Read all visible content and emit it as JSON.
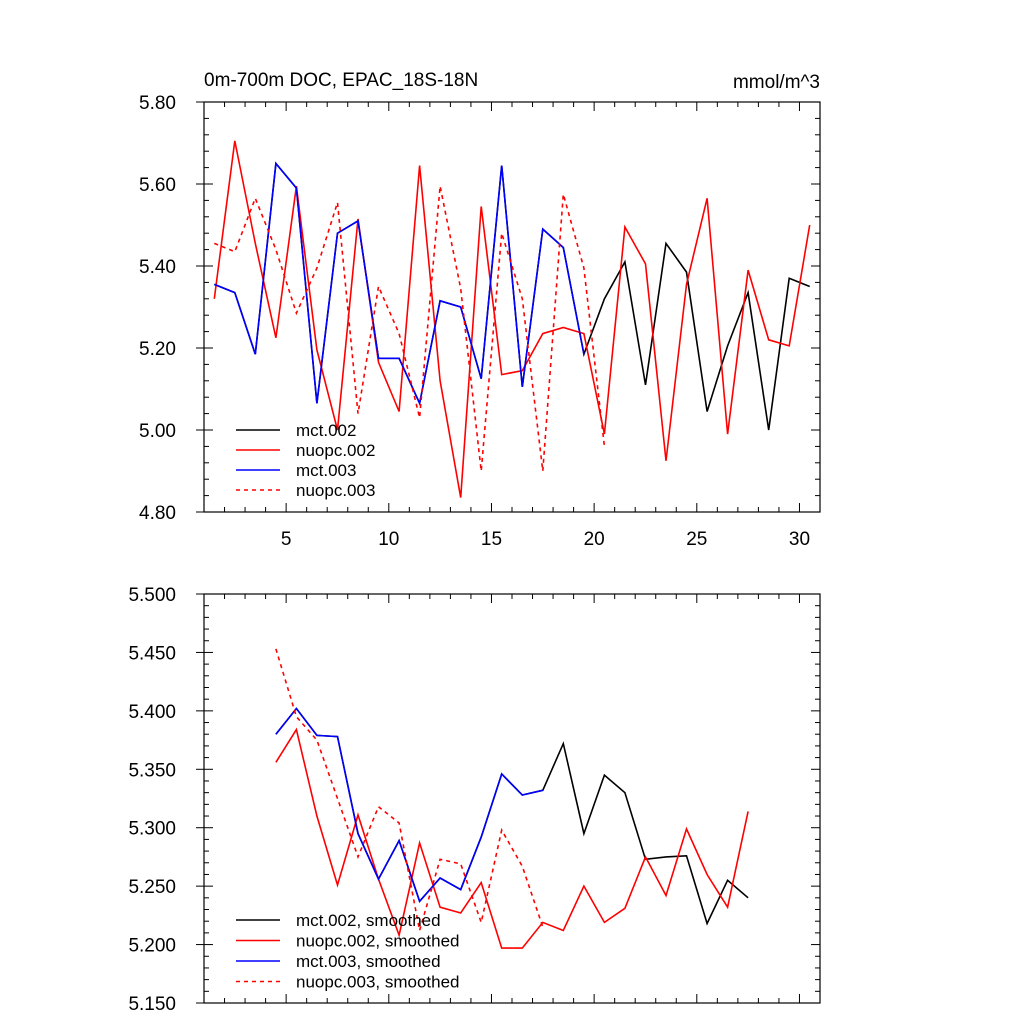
{
  "figure": {
    "title_left": "0m-700m DOC, EPAC_18S-18N",
    "title_right": "mmol/m^3"
  },
  "chart_data": [
    {
      "type": "line",
      "panel": "top",
      "xlim": [
        1,
        31
      ],
      "ylim": [
        4.8,
        5.8
      ],
      "xticks": [
        5,
        10,
        15,
        20,
        25,
        30
      ],
      "xtick_labels": [
        "5",
        "10",
        "15",
        "20",
        "25",
        "30"
      ],
      "yticks": [
        4.8,
        5.0,
        5.2,
        5.4,
        5.6,
        5.8
      ],
      "ytick_labels": [
        "4.80",
        "5.00",
        "5.20",
        "5.40",
        "5.60",
        "5.80"
      ],
      "legend_position": "lower-left",
      "grid": false,
      "series": [
        {
          "name": "mct.002",
          "color": "#000000",
          "dash": "solid",
          "x": [
            1.5,
            2.5,
            3.5,
            4.5,
            5.5,
            6.5,
            7.5,
            8.5,
            9.5,
            10.5,
            11.5,
            12.5,
            13.5,
            14.5,
            15.5,
            16.5,
            17.5,
            18.5,
            19.5,
            20.5,
            21.5,
            22.5,
            23.5,
            24.5,
            25.5,
            26.5,
            27.5,
            28.5,
            29.5,
            30.5
          ],
          "values": [
            5.355,
            5.335,
            5.185,
            5.65,
            5.59,
            5.065,
            5.48,
            5.51,
            5.175,
            5.175,
            5.065,
            5.315,
            5.3,
            5.125,
            5.645,
            5.105,
            5.49,
            5.445,
            5.185,
            5.32,
            5.41,
            5.11,
            5.455,
            5.385,
            5.045,
            5.205,
            5.335,
            5.0,
            5.37,
            5.35
          ]
        },
        {
          "name": "nuopc.002",
          "color": "#ff0000",
          "dash": "solid",
          "x": [
            1.5,
            2.5,
            3.5,
            4.5,
            5.5,
            6.5,
            7.5,
            8.5,
            9.5,
            10.5,
            11.5,
            12.5,
            13.5,
            14.5,
            15.5,
            16.5,
            17.5,
            18.5,
            19.5,
            20.5,
            21.5,
            22.5,
            23.5,
            24.5,
            25.5,
            26.5,
            27.5,
            28.5,
            29.5,
            30.5
          ],
          "values": [
            5.32,
            5.705,
            5.455,
            5.225,
            5.595,
            5.195,
            5.0,
            5.515,
            5.165,
            5.045,
            5.645,
            5.12,
            4.835,
            5.545,
            5.135,
            5.145,
            5.235,
            5.25,
            5.235,
            4.99,
            5.495,
            5.405,
            4.925,
            5.355,
            5.565,
            4.99,
            5.39,
            5.22,
            5.205,
            5.5
          ]
        },
        {
          "name": "mct.003",
          "color": "#0000ff",
          "dash": "solid",
          "x": [
            1.5,
            2.5,
            3.5,
            4.5,
            5.5,
            6.5,
            7.5,
            8.5,
            9.5,
            10.5,
            11.5,
            12.5,
            13.5,
            14.5,
            15.5,
            16.5,
            17.5,
            18.5,
            19.5
          ],
          "values": [
            5.355,
            5.335,
            5.185,
            5.65,
            5.59,
            5.065,
            5.48,
            5.51,
            5.175,
            5.175,
            5.065,
            5.315,
            5.3,
            5.125,
            5.645,
            5.105,
            5.49,
            5.445,
            5.185
          ]
        },
        {
          "name": "nuopc.003",
          "color": "#ff0000",
          "dash": "dashed",
          "x": [
            1.5,
            2.5,
            3.5,
            4.5,
            5.5,
            6.5,
            7.5,
            8.5,
            9.5,
            10.5,
            11.5,
            12.5,
            13.5,
            14.5,
            15.5,
            16.5,
            17.5,
            18.5,
            19.5,
            20.5
          ],
          "values": [
            5.455,
            5.435,
            5.565,
            5.44,
            5.285,
            5.395,
            5.555,
            5.04,
            5.35,
            5.235,
            5.03,
            5.595,
            5.345,
            4.9,
            5.48,
            5.32,
            4.9,
            5.575,
            5.395,
            4.96
          ]
        }
      ]
    },
    {
      "type": "line",
      "panel": "bottom",
      "xlim": [
        1,
        31
      ],
      "ylim": [
        5.15,
        5.5
      ],
      "xticks": [
        5,
        10,
        15,
        20,
        25,
        30
      ],
      "xtick_labels": [
        "",
        "",
        "",
        "",
        "",
        ""
      ],
      "yticks": [
        5.15,
        5.2,
        5.25,
        5.3,
        5.35,
        5.4,
        5.45,
        5.5
      ],
      "ytick_labels": [
        "5.150",
        "5.200",
        "5.250",
        "5.300",
        "5.350",
        "5.400",
        "5.450",
        "5.500"
      ],
      "legend_position": "lower-left",
      "grid": false,
      "series": [
        {
          "name": "mct.002, smoothed",
          "color": "#000000",
          "dash": "solid",
          "x": [
            4.5,
            5.5,
            6.5,
            7.5,
            8.5,
            9.5,
            10.5,
            11.5,
            12.5,
            13.5,
            14.5,
            15.5,
            16.5,
            17.5,
            18.5,
            19.5,
            20.5,
            21.5,
            22.5,
            23.5,
            24.5,
            25.5,
            26.5,
            27.5
          ],
          "values": [
            5.38,
            5.402,
            5.379,
            5.378,
            5.295,
            5.256,
            5.289,
            5.237,
            5.257,
            5.247,
            5.292,
            5.346,
            5.328,
            5.332,
            5.372,
            5.295,
            5.345,
            5.33,
            5.273,
            5.275,
            5.276,
            5.218,
            5.255,
            5.24
          ]
        },
        {
          "name": "nuopc.002, smoothed",
          "color": "#ff0000",
          "dash": "solid",
          "x": [
            4.5,
            5.5,
            6.5,
            7.5,
            8.5,
            9.5,
            10.5,
            11.5,
            12.5,
            13.5,
            14.5,
            15.5,
            16.5,
            17.5,
            18.5,
            19.5,
            20.5,
            21.5,
            22.5,
            23.5,
            24.5,
            25.5,
            26.5,
            27.5
          ],
          "values": [
            5.356,
            5.384,
            5.31,
            5.251,
            5.311,
            5.256,
            5.208,
            5.287,
            5.232,
            5.227,
            5.253,
            5.197,
            5.197,
            5.219,
            5.212,
            5.25,
            5.219,
            5.231,
            5.275,
            5.242,
            5.299,
            5.26,
            5.232,
            5.314
          ]
        },
        {
          "name": "mct.003, smoothed",
          "color": "#0000ff",
          "dash": "solid",
          "x": [
            4.5,
            5.5,
            6.5,
            7.5,
            8.5,
            9.5,
            10.5,
            11.5,
            12.5,
            13.5,
            14.5,
            15.5,
            16.5,
            17.5
          ],
          "values": [
            5.38,
            5.402,
            5.379,
            5.378,
            5.295,
            5.256,
            5.289,
            5.237,
            5.257,
            5.247,
            5.292,
            5.346,
            5.328,
            5.332
          ]
        },
        {
          "name": "nuopc.003, smoothed",
          "color": "#ff0000",
          "dash": "dashed",
          "x": [
            4.5,
            5.5,
            6.5,
            7.5,
            8.5,
            9.5,
            10.5,
            11.5,
            12.5,
            13.5,
            14.5,
            15.5,
            16.5,
            17.5
          ],
          "values": [
            5.453,
            5.395,
            5.375,
            5.325,
            5.275,
            5.318,
            5.304,
            5.212,
            5.273,
            5.269,
            5.219,
            5.298,
            5.267,
            5.215
          ]
        }
      ]
    }
  ]
}
